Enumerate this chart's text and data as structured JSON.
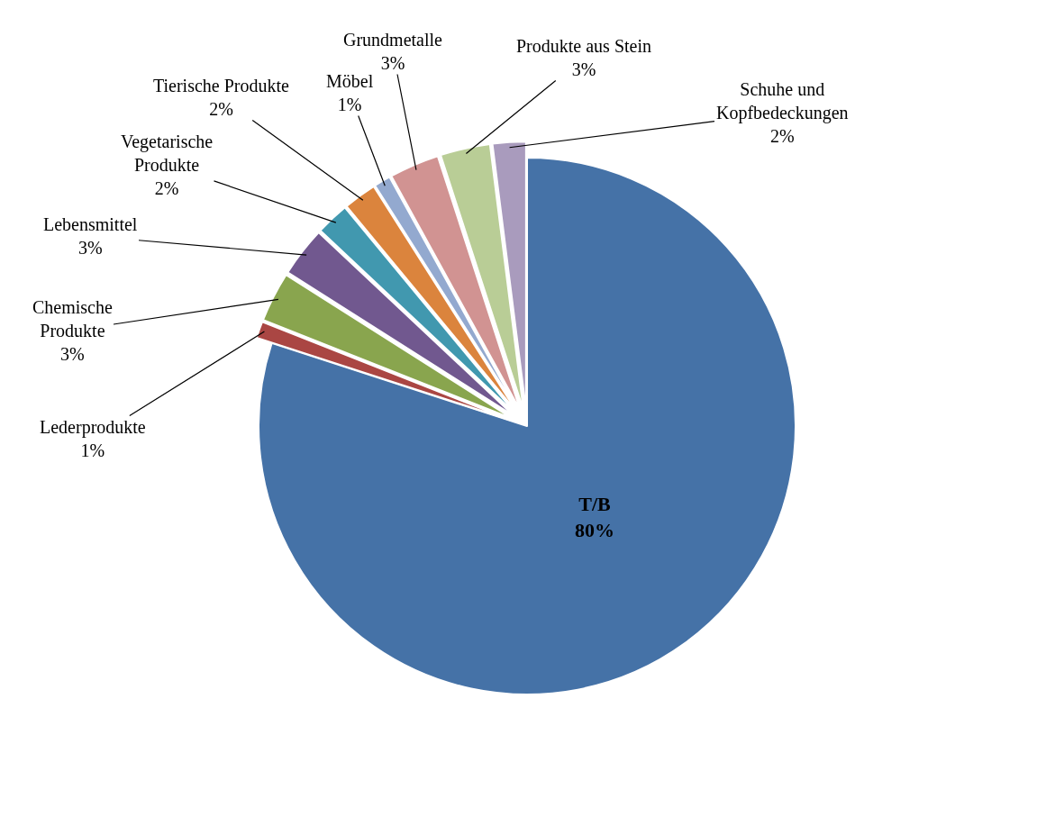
{
  "chart_data": {
    "type": "pie",
    "categories": [
      "T/B",
      "Lederprodukte",
      "Chemische Produkte",
      "Lebensmittel",
      "Vegetarische Produkte",
      "Tierische Produkte",
      "Möbel",
      "Grundmetalle",
      "Produkte aus Stein",
      "Schuhe und Kopfbedeckungen"
    ],
    "values": [
      80,
      1,
      3,
      3,
      2,
      2,
      1,
      3,
      3,
      2
    ],
    "value_labels": [
      "80%",
      "1%",
      "3%",
      "3%",
      "2%",
      "2%",
      "1%",
      "3%",
      "3%",
      "2%"
    ],
    "colors": [
      "#4572a7",
      "#aa4643",
      "#89a54e",
      "#71588f",
      "#4198af",
      "#db843d",
      "#93a9cf",
      "#d19392",
      "#b9cd96",
      "#a99bbd"
    ],
    "legend": false
  }
}
